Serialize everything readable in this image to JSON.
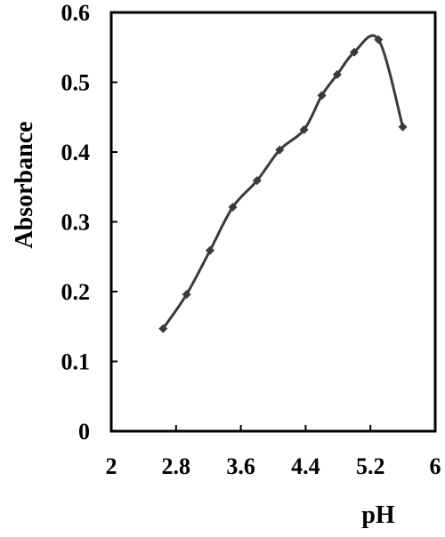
{
  "chart_data": {
    "type": "line",
    "title": "",
    "xlabel": "pH",
    "ylabel": "Absorbance",
    "xlim": [
      2,
      6
    ],
    "ylim": [
      0,
      0.6
    ],
    "xticks": [
      2,
      2.8,
      3.6,
      4.4,
      5.2,
      6
    ],
    "xtick_labels": [
      "2",
      "2.8",
      "3.6",
      "4.4",
      "5.2",
      "6"
    ],
    "yticks": [
      0,
      0.1,
      0.2,
      0.3,
      0.4,
      0.5,
      0.6
    ],
    "ytick_labels": [
      "0",
      "0.1",
      "0.2",
      "0.3",
      "0.4",
      "0.5",
      "0.6"
    ],
    "grid": false,
    "legend": "none",
    "series": [
      {
        "x": [
          2.64,
          2.93,
          3.22,
          3.5,
          3.8,
          4.08,
          4.38,
          4.6,
          4.79,
          5.0,
          5.3,
          5.6
        ],
        "y": [
          0.147,
          0.196,
          0.259,
          0.321,
          0.359,
          0.403,
          0.432,
          0.481,
          0.511,
          0.543,
          0.561,
          0.436
        ],
        "color": "#3a3a3a"
      }
    ]
  }
}
